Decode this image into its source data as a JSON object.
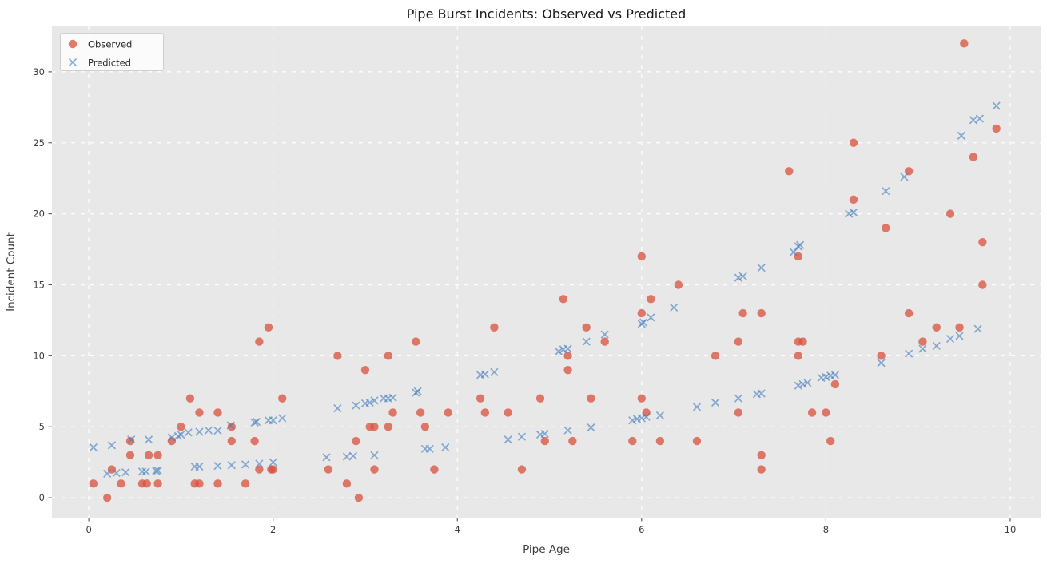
{
  "figure": {
    "title": "Pipe Burst Incidents: Observed vs Predicted",
    "background": "#ffffff"
  },
  "chart_data": {
    "type": "scatter",
    "title": "Pipe Burst Incidents: Observed vs Predicted",
    "xlabel": "Pipe Age",
    "ylabel": "Incident Count",
    "xlim": [
      -0.4,
      10.33
    ],
    "ylim": [
      -1.4,
      33.2
    ],
    "xticks": [
      0,
      2,
      4,
      6,
      8,
      10
    ],
    "yticks": [
      0,
      5,
      10,
      15,
      20,
      25,
      30
    ],
    "grid": true,
    "grid_style": "dashed",
    "grid_color": "#ffffff",
    "plot_background": "#e8e8e8",
    "tick_color": "#555555",
    "legend_position": "upper left",
    "series": [
      {
        "name": "Observed",
        "marker": "circle",
        "color": "rgba(217,80,60,0.75)",
        "marker_size": 5.2,
        "points": [
          [
            0.05,
            1
          ],
          [
            0.2,
            0
          ],
          [
            0.25,
            2
          ],
          [
            0.35,
            1
          ],
          [
            0.45,
            3
          ],
          [
            0.45,
            4
          ],
          [
            0.58,
            1
          ],
          [
            0.63,
            1
          ],
          [
            0.65,
            3
          ],
          [
            0.75,
            3
          ],
          [
            0.75,
            1
          ],
          [
            0.9,
            4
          ],
          [
            1.0,
            5
          ],
          [
            1.1,
            7
          ],
          [
            1.15,
            1
          ],
          [
            1.2,
            1
          ],
          [
            1.2,
            6
          ],
          [
            1.4,
            6
          ],
          [
            1.4,
            1
          ],
          [
            1.55,
            5
          ],
          [
            1.55,
            4
          ],
          [
            1.7,
            1
          ],
          [
            1.8,
            4
          ],
          [
            1.85,
            2
          ],
          [
            1.85,
            11
          ],
          [
            1.95,
            12
          ],
          [
            1.98,
            2
          ],
          [
            2.0,
            2
          ],
          [
            2.1,
            7
          ],
          [
            2.6,
            2
          ],
          [
            2.7,
            10
          ],
          [
            2.8,
            1
          ],
          [
            2.9,
            4
          ],
          [
            2.93,
            0
          ],
          [
            3.0,
            9
          ],
          [
            3.05,
            5
          ],
          [
            3.1,
            5
          ],
          [
            3.1,
            2
          ],
          [
            3.25,
            10
          ],
          [
            3.25,
            5
          ],
          [
            3.3,
            6
          ],
          [
            3.55,
            11
          ],
          [
            3.6,
            6
          ],
          [
            3.65,
            5
          ],
          [
            3.75,
            2
          ],
          [
            3.9,
            6
          ],
          [
            4.25,
            7
          ],
          [
            4.3,
            6
          ],
          [
            4.4,
            12
          ],
          [
            4.55,
            6
          ],
          [
            4.7,
            2
          ],
          [
            4.9,
            7
          ],
          [
            4.95,
            4
          ],
          [
            5.15,
            14
          ],
          [
            5.2,
            10
          ],
          [
            5.2,
            9
          ],
          [
            5.25,
            4
          ],
          [
            5.4,
            12
          ],
          [
            5.45,
            7
          ],
          [
            5.6,
            11
          ],
          [
            5.9,
            4
          ],
          [
            6.0,
            17
          ],
          [
            6.0,
            13
          ],
          [
            6.0,
            7
          ],
          [
            6.05,
            6
          ],
          [
            6.1,
            14
          ],
          [
            6.2,
            4
          ],
          [
            6.4,
            15
          ],
          [
            6.6,
            4
          ],
          [
            6.8,
            10
          ],
          [
            7.05,
            11
          ],
          [
            7.05,
            6
          ],
          [
            7.1,
            13
          ],
          [
            7.3,
            13
          ],
          [
            7.3,
            3
          ],
          [
            7.3,
            2
          ],
          [
            7.6,
            23
          ],
          [
            7.7,
            17
          ],
          [
            7.7,
            11
          ],
          [
            7.75,
            11
          ],
          [
            7.7,
            10
          ],
          [
            7.85,
            6
          ],
          [
            8.0,
            6
          ],
          [
            8.05,
            4
          ],
          [
            8.1,
            8
          ],
          [
            8.3,
            25
          ],
          [
            8.3,
            21
          ],
          [
            8.6,
            10
          ],
          [
            8.65,
            19
          ],
          [
            8.9,
            23
          ],
          [
            8.9,
            13
          ],
          [
            9.05,
            11
          ],
          [
            9.2,
            12
          ],
          [
            9.35,
            20
          ],
          [
            9.45,
            12
          ],
          [
            9.5,
            32
          ],
          [
            9.6,
            24
          ],
          [
            9.7,
            18
          ],
          [
            9.7,
            15
          ],
          [
            9.85,
            26
          ]
        ]
      },
      {
        "name": "Predicted",
        "marker": "x",
        "color": "rgba(63,124,191,0.6)",
        "marker_size": 4.5,
        "points": [
          [
            0.05,
            3.55
          ],
          [
            0.2,
            1.7
          ],
          [
            0.25,
            3.7
          ],
          [
            0.3,
            1.75
          ],
          [
            0.4,
            1.8
          ],
          [
            0.46,
            4.1
          ],
          [
            0.58,
            1.85
          ],
          [
            0.62,
            1.85
          ],
          [
            0.65,
            4.1
          ],
          [
            0.73,
            1.9
          ],
          [
            0.75,
            1.92
          ],
          [
            0.9,
            4.25
          ],
          [
            0.97,
            4.35
          ],
          [
            1.0,
            4.45
          ],
          [
            1.08,
            4.6
          ],
          [
            1.15,
            2.2
          ],
          [
            1.2,
            2.2
          ],
          [
            1.2,
            4.65
          ],
          [
            1.3,
            4.75
          ],
          [
            1.4,
            4.73
          ],
          [
            1.4,
            2.25
          ],
          [
            1.54,
            5.1
          ],
          [
            1.55,
            2.3
          ],
          [
            1.7,
            2.35
          ],
          [
            1.8,
            5.3
          ],
          [
            1.82,
            5.35
          ],
          [
            1.85,
            2.4
          ],
          [
            1.95,
            5.45
          ],
          [
            2.0,
            5.45
          ],
          [
            2.0,
            2.5
          ],
          [
            2.1,
            5.6
          ],
          [
            2.58,
            2.85
          ],
          [
            2.7,
            6.3
          ],
          [
            2.8,
            2.9
          ],
          [
            2.87,
            2.95
          ],
          [
            2.9,
            6.5
          ],
          [
            3.0,
            6.65
          ],
          [
            3.05,
            6.7
          ],
          [
            3.1,
            3.0
          ],
          [
            3.1,
            6.85
          ],
          [
            3.2,
            7.0
          ],
          [
            3.25,
            7.0
          ],
          [
            3.3,
            7.05
          ],
          [
            3.55,
            7.4
          ],
          [
            3.57,
            7.5
          ],
          [
            3.65,
            3.45
          ],
          [
            3.7,
            3.45
          ],
          [
            3.87,
            3.55
          ],
          [
            4.25,
            8.65
          ],
          [
            4.3,
            8.7
          ],
          [
            4.4,
            8.85
          ],
          [
            4.55,
            4.1
          ],
          [
            4.7,
            4.3
          ],
          [
            4.9,
            4.45
          ],
          [
            4.95,
            4.5
          ],
          [
            5.1,
            10.3
          ],
          [
            5.15,
            10.45
          ],
          [
            5.2,
            10.5
          ],
          [
            5.2,
            4.75
          ],
          [
            5.4,
            11.0
          ],
          [
            5.45,
            4.95
          ],
          [
            5.6,
            11.5
          ],
          [
            5.9,
            5.45
          ],
          [
            5.95,
            5.55
          ],
          [
            6.0,
            5.6
          ],
          [
            6.05,
            5.7
          ],
          [
            6.0,
            12.25
          ],
          [
            6.02,
            12.35
          ],
          [
            6.1,
            12.7
          ],
          [
            6.2,
            5.8
          ],
          [
            6.35,
            13.4
          ],
          [
            6.6,
            6.4
          ],
          [
            6.8,
            6.7
          ],
          [
            7.05,
            7.0
          ],
          [
            7.05,
            15.5
          ],
          [
            7.1,
            15.6
          ],
          [
            7.25,
            7.3
          ],
          [
            7.3,
            7.35
          ],
          [
            7.3,
            16.2
          ],
          [
            7.65,
            17.3
          ],
          [
            7.7,
            17.7
          ],
          [
            7.72,
            17.8
          ],
          [
            7.7,
            7.9
          ],
          [
            7.75,
            8.0
          ],
          [
            7.8,
            8.1
          ],
          [
            7.95,
            8.45
          ],
          [
            8.0,
            8.5
          ],
          [
            8.05,
            8.6
          ],
          [
            8.1,
            8.65
          ],
          [
            8.25,
            20.0
          ],
          [
            8.3,
            20.1
          ],
          [
            8.6,
            9.5
          ],
          [
            8.65,
            21.6
          ],
          [
            8.85,
            22.6
          ],
          [
            8.9,
            10.15
          ],
          [
            9.05,
            10.5
          ],
          [
            9.2,
            10.7
          ],
          [
            9.35,
            11.2
          ],
          [
            9.45,
            11.4
          ],
          [
            9.47,
            25.5
          ],
          [
            9.6,
            26.6
          ],
          [
            9.67,
            26.7
          ],
          [
            9.65,
            11.9
          ],
          [
            9.85,
            27.6
          ]
        ]
      }
    ]
  }
}
